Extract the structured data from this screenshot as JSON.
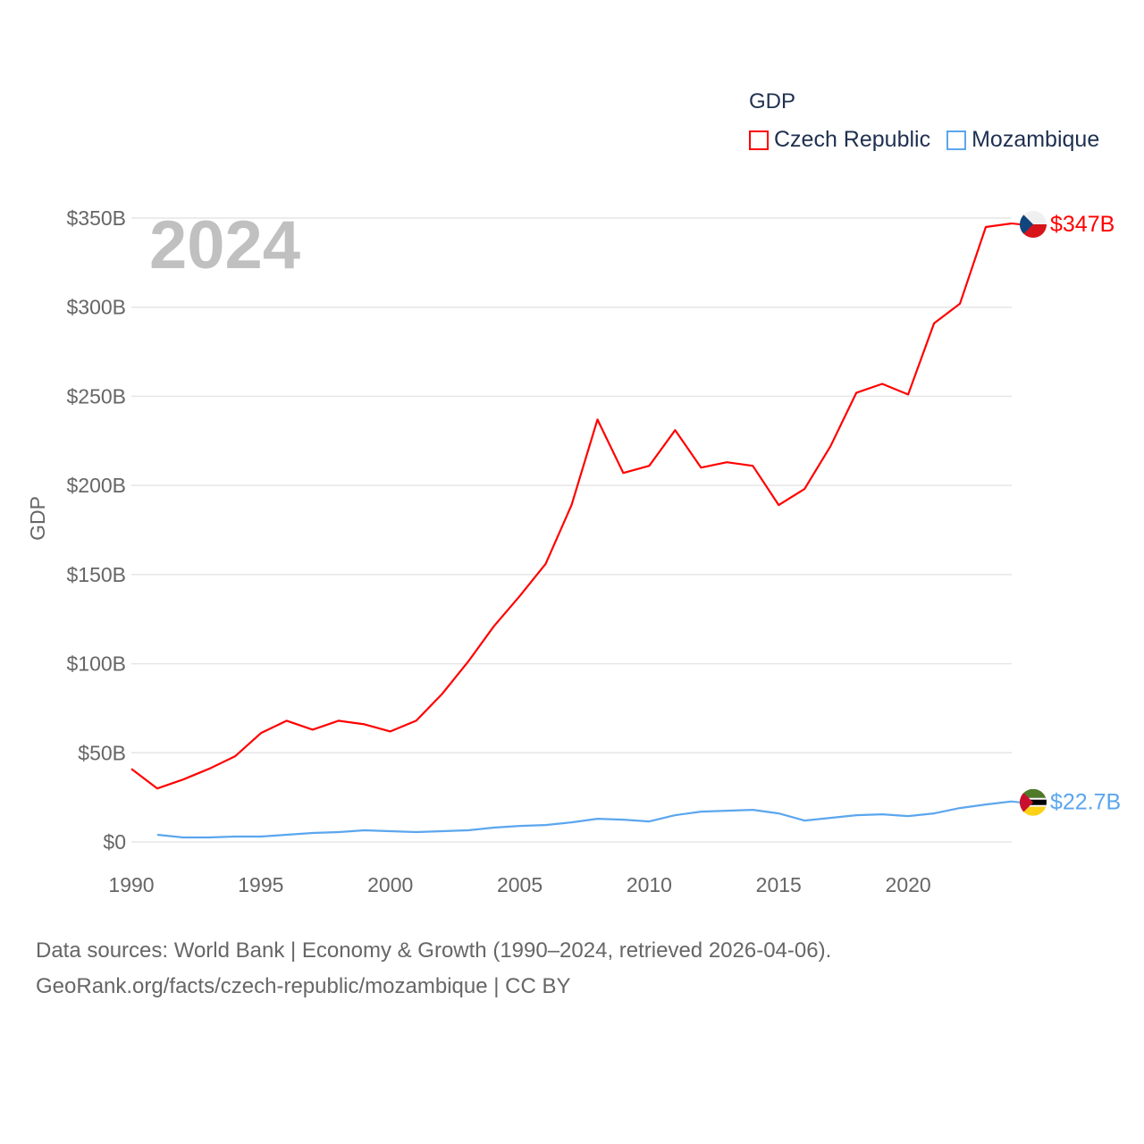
{
  "chart_data": {
    "type": "line",
    "title": "GDP",
    "year_label": "2024",
    "ylabel": "GDP",
    "xlabel": "",
    "xlim": [
      1990,
      2024
    ],
    "ylim": [
      0,
      350
    ],
    "x_ticks": [
      "1990",
      "1995",
      "2000",
      "2005",
      "2010",
      "2015",
      "2020"
    ],
    "x_tick_values": [
      1990,
      1995,
      2000,
      2005,
      2010,
      2015,
      2020
    ],
    "y_ticks": [
      "$0",
      "$50B",
      "$100B",
      "$150B",
      "$200B",
      "$250B",
      "$300B",
      "$350B"
    ],
    "y_tick_values": [
      0,
      50,
      100,
      150,
      200,
      250,
      300,
      350
    ],
    "grid": true,
    "legend_position": "top-right",
    "series": [
      {
        "name": "Czech Republic",
        "color": "#ff0000",
        "end_label": "$347B",
        "flag": "czech-flag",
        "x": [
          1990,
          1991,
          1992,
          1993,
          1994,
          1995,
          1996,
          1997,
          1998,
          1999,
          2000,
          2001,
          2002,
          2003,
          2004,
          2005,
          2006,
          2007,
          2008,
          2009,
          2010,
          2011,
          2012,
          2013,
          2014,
          2015,
          2016,
          2017,
          2018,
          2019,
          2020,
          2021,
          2022,
          2023,
          2024
        ],
        "values": [
          41,
          30,
          35,
          41,
          48,
          61,
          68,
          63,
          68,
          66,
          62,
          68,
          83,
          101,
          121,
          138,
          156,
          189,
          237,
          207,
          211,
          231,
          210,
          213,
          211,
          189,
          198,
          222,
          252,
          257,
          251,
          291,
          302,
          345,
          347
        ]
      },
      {
        "name": "Mozambique",
        "color": "#5ba6ee",
        "end_label": "$22.7B",
        "flag": "mozambique-flag",
        "x": [
          1991,
          1992,
          1993,
          1994,
          1995,
          1996,
          1997,
          1998,
          1999,
          2000,
          2001,
          2002,
          2003,
          2004,
          2005,
          2006,
          2007,
          2008,
          2009,
          2010,
          2011,
          2012,
          2013,
          2014,
          2015,
          2016,
          2017,
          2018,
          2019,
          2020,
          2021,
          2022,
          2023,
          2024
        ],
        "values": [
          4,
          2.5,
          2.5,
          3,
          3,
          4,
          5,
          5.5,
          6.5,
          6,
          5.5,
          6,
          6.5,
          8,
          9,
          9.5,
          11,
          13,
          12.5,
          11.5,
          15,
          17,
          17.5,
          18,
          16,
          12,
          13.5,
          15,
          15.5,
          14.5,
          16,
          19,
          21,
          22.7
        ]
      }
    ]
  },
  "footer": {
    "line1": "Data sources: World Bank | Economy & Growth (1990–2024, retrieved 2026-04-06).",
    "line2": "GeoRank.org/facts/czech-republic/mozambique | CC BY"
  }
}
